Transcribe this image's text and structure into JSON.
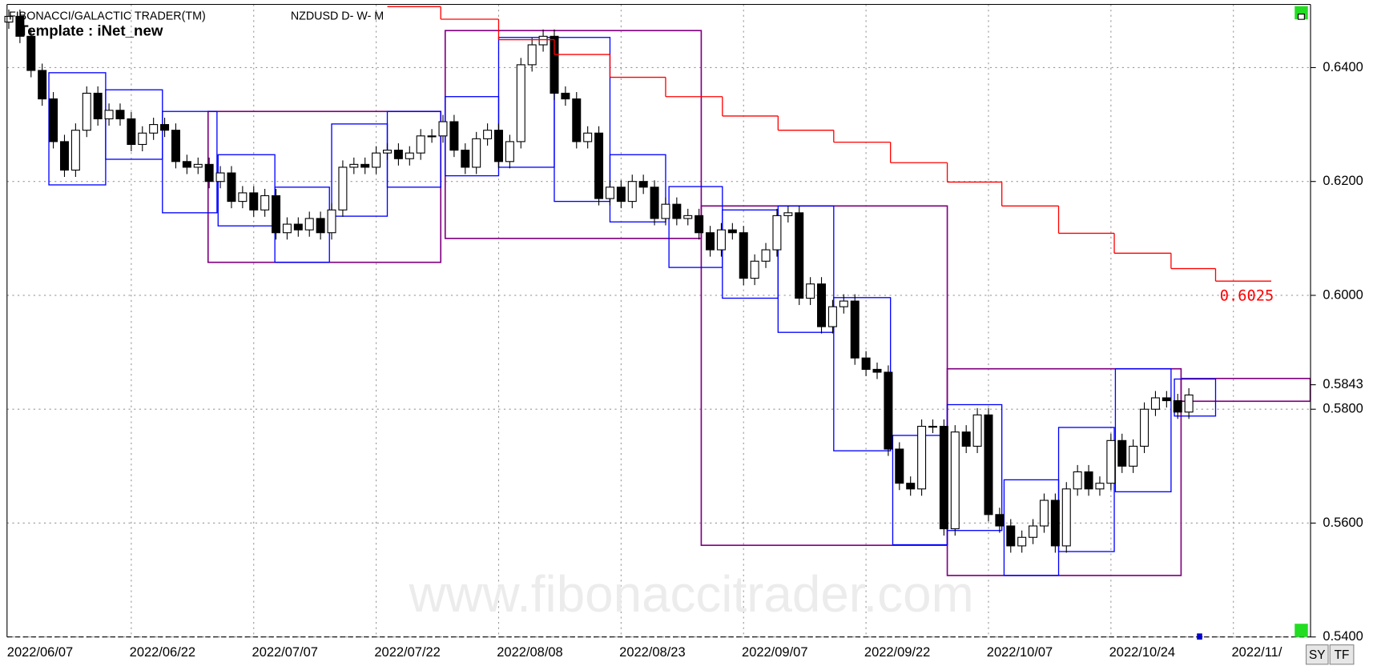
{
  "chart_data": {
    "type": "candlestick",
    "title": "FIBONACCI/GALACTIC TRADER(TM)",
    "symbol": "NZDUSD D- W- M",
    "template": "Template : iNet_new",
    "watermark": "www.fibonaccitrader.com",
    "buttons": [
      "SY",
      "TF"
    ],
    "up_color": "#ffffff",
    "down_color": "#000000",
    "weekly_color": "#0000ff",
    "monthly_color": "#800080",
    "stop_color": "#ff0000",
    "grid": true,
    "ylim": [
      0.54,
      0.6511
    ],
    "yticks": [
      {
        "value": 0.54,
        "label": "0.5400"
      },
      {
        "value": 0.56,
        "label": "0.5600"
      },
      {
        "value": 0.58,
        "label": "0.5800"
      },
      {
        "value": 0.6,
        "label": "0.6000"
      },
      {
        "value": 0.62,
        "label": "0.6200"
      },
      {
        "value": 0.64,
        "label": "0.6400"
      }
    ],
    "last_price": 0.5843,
    "xlim": [
      -0.158,
      116.93
    ],
    "xticks": [
      {
        "value": 0,
        "label": "2022/06/07"
      },
      {
        "value": 11,
        "label": "2022/06/22"
      },
      {
        "value": 22,
        "label": "2022/07/07"
      },
      {
        "value": 33,
        "label": "2022/07/22"
      },
      {
        "value": 44,
        "label": "2022/08/08"
      },
      {
        "value": 55,
        "label": "2022/08/23"
      },
      {
        "value": 66,
        "label": "2022/09/07"
      },
      {
        "value": 77,
        "label": "2022/09/22"
      },
      {
        "value": 88,
        "label": "2022/10/07"
      },
      {
        "value": 99,
        "label": "2022/10/24"
      },
      {
        "value": 110,
        "label": "2022/11/"
      }
    ],
    "candles": [
      [
        0.648,
        0.6502,
        0.6468,
        0.649
      ],
      [
        0.649,
        0.6502,
        0.6443,
        0.6455
      ],
      [
        0.6455,
        0.6467,
        0.6383,
        0.6395
      ],
      [
        0.6395,
        0.6407,
        0.6333,
        0.6345
      ],
      [
        0.6345,
        0.6357,
        0.6258,
        0.627
      ],
      [
        0.627,
        0.6282,
        0.6208,
        0.622
      ],
      [
        0.622,
        0.6302,
        0.6208,
        0.629
      ],
      [
        0.629,
        0.6367,
        0.6278,
        0.6355
      ],
      [
        0.6355,
        0.6367,
        0.6298,
        0.631
      ],
      [
        0.631,
        0.6337,
        0.6298,
        0.6325
      ],
      [
        0.6325,
        0.6337,
        0.6298,
        0.631
      ],
      [
        0.631,
        0.6322,
        0.6253,
        0.6265
      ],
      [
        0.6265,
        0.6297,
        0.6253,
        0.6285
      ],
      [
        0.6285,
        0.6312,
        0.6273,
        0.63
      ],
      [
        0.63,
        0.6312,
        0.6278,
        0.629
      ],
      [
        0.629,
        0.6302,
        0.6223,
        0.6235
      ],
      [
        0.6235,
        0.6247,
        0.6213,
        0.6225
      ],
      [
        0.6225,
        0.6242,
        0.6213,
        0.623
      ],
      [
        0.623,
        0.6242,
        0.6188,
        0.62
      ],
      [
        0.62,
        0.6227,
        0.6188,
        0.6215
      ],
      [
        0.6215,
        0.6227,
        0.6153,
        0.6165
      ],
      [
        0.6165,
        0.6192,
        0.6153,
        0.618
      ],
      [
        0.618,
        0.6192,
        0.6138,
        0.615
      ],
      [
        0.615,
        0.6187,
        0.6138,
        0.6175
      ],
      [
        0.6175,
        0.6187,
        0.6098,
        0.611
      ],
      [
        0.611,
        0.6137,
        0.6098,
        0.6125
      ],
      [
        0.6125,
        0.6137,
        0.6103,
        0.6115
      ],
      [
        0.6115,
        0.6147,
        0.6103,
        0.6135
      ],
      [
        0.6135,
        0.6147,
        0.6098,
        0.611
      ],
      [
        0.611,
        0.6162,
        0.6098,
        0.615
      ],
      [
        0.615,
        0.6237,
        0.6138,
        0.6225
      ],
      [
        0.6225,
        0.6242,
        0.6213,
        0.623
      ],
      [
        0.623,
        0.6242,
        0.6213,
        0.6225
      ],
      [
        0.6225,
        0.6262,
        0.6213,
        0.625
      ],
      [
        0.625,
        0.6267,
        0.6238,
        0.6255
      ],
      [
        0.6255,
        0.6267,
        0.6228,
        0.624
      ],
      [
        0.624,
        0.6262,
        0.6228,
        0.625
      ],
      [
        0.625,
        0.6292,
        0.6238,
        0.628
      ],
      [
        0.628,
        0.6292,
        0.6268,
        0.628
      ],
      [
        0.628,
        0.6317,
        0.6268,
        0.6305
      ],
      [
        0.6305,
        0.6317,
        0.6243,
        0.6255
      ],
      [
        0.6255,
        0.6267,
        0.6213,
        0.6225
      ],
      [
        0.6225,
        0.6287,
        0.6213,
        0.6275
      ],
      [
        0.6275,
        0.6302,
        0.6263,
        0.629
      ],
      [
        0.629,
        0.6302,
        0.6223,
        0.6235
      ],
      [
        0.6235,
        0.6282,
        0.6223,
        0.627
      ],
      [
        0.627,
        0.6417,
        0.6258,
        0.6405
      ],
      [
        0.6405,
        0.6452,
        0.6393,
        0.644
      ],
      [
        0.644,
        0.6467,
        0.6428,
        0.6455
      ],
      [
        0.6455,
        0.6467,
        0.6343,
        0.6355
      ],
      [
        0.6355,
        0.6367,
        0.6333,
        0.6345
      ],
      [
        0.6345,
        0.6357,
        0.6258,
        0.627
      ],
      [
        0.627,
        0.6297,
        0.6258,
        0.6285
      ],
      [
        0.6285,
        0.6297,
        0.6158,
        0.617
      ],
      [
        0.617,
        0.6202,
        0.6158,
        0.619
      ],
      [
        0.619,
        0.6202,
        0.6153,
        0.6165
      ],
      [
        0.6165,
        0.6212,
        0.6153,
        0.62
      ],
      [
        0.62,
        0.6212,
        0.6178,
        0.619
      ],
      [
        0.619,
        0.6202,
        0.6123,
        0.6135
      ],
      [
        0.6135,
        0.6172,
        0.6123,
        0.616
      ],
      [
        0.616,
        0.6172,
        0.6123,
        0.6135
      ],
      [
        0.6135,
        0.6152,
        0.6123,
        0.614
      ],
      [
        0.614,
        0.6152,
        0.6098,
        0.611
      ],
      [
        0.611,
        0.6122,
        0.6068,
        0.608
      ],
      [
        0.608,
        0.6127,
        0.6068,
        0.6115
      ],
      [
        0.6115,
        0.6127,
        0.6098,
        0.611
      ],
      [
        0.611,
        0.6122,
        0.6018,
        0.603
      ],
      [
        0.603,
        0.6072,
        0.6018,
        0.606
      ],
      [
        0.606,
        0.6092,
        0.6048,
        0.608
      ],
      [
        0.608,
        0.6152,
        0.6068,
        0.614
      ],
      [
        0.614,
        0.6157,
        0.6128,
        0.6145
      ],
      [
        0.6145,
        0.6157,
        0.5983,
        0.5995
      ],
      [
        0.5995,
        0.6032,
        0.5983,
        0.602
      ],
      [
        0.602,
        0.6032,
        0.5933,
        0.5945
      ],
      [
        0.5945,
        0.5992,
        0.5933,
        0.598
      ],
      [
        0.598,
        0.6002,
        0.5968,
        0.599
      ],
      [
        0.599,
        0.6002,
        0.5878,
        0.589
      ],
      [
        0.589,
        0.5902,
        0.5858,
        0.587
      ],
      [
        0.587,
        0.5882,
        0.5853,
        0.5865
      ],
      [
        0.5865,
        0.5877,
        0.5718,
        0.573
      ],
      [
        0.573,
        0.5742,
        0.5658,
        0.567
      ],
      [
        0.567,
        0.5682,
        0.5648,
        0.566
      ],
      [
        0.566,
        0.5782,
        0.5648,
        0.577
      ],
      [
        0.577,
        0.5782,
        0.5758,
        0.577
      ],
      [
        0.577,
        0.5782,
        0.5578,
        0.559
      ],
      [
        0.559,
        0.5772,
        0.5578,
        0.576
      ],
      [
        0.576,
        0.5772,
        0.5723,
        0.5735
      ],
      [
        0.5735,
        0.5802,
        0.5723,
        0.579
      ],
      [
        0.579,
        0.5802,
        0.5603,
        0.5615
      ],
      [
        0.5615,
        0.5627,
        0.5583,
        0.5595
      ],
      [
        0.5595,
        0.5607,
        0.5548,
        0.556
      ],
      [
        0.556,
        0.5587,
        0.5548,
        0.5575
      ],
      [
        0.5575,
        0.5607,
        0.5563,
        0.5595
      ],
      [
        0.5595,
        0.5652,
        0.5583,
        0.564
      ],
      [
        0.564,
        0.5652,
        0.5548,
        0.556
      ],
      [
        0.556,
        0.5672,
        0.5548,
        0.566
      ],
      [
        0.566,
        0.5702,
        0.5648,
        0.569
      ],
      [
        0.569,
        0.5702,
        0.5648,
        0.566
      ],
      [
        0.566,
        0.5682,
        0.5648,
        0.567
      ],
      [
        0.567,
        0.5757,
        0.5658,
        0.5745
      ],
      [
        0.5745,
        0.5757,
        0.5688,
        0.57
      ],
      [
        0.57,
        0.5747,
        0.5688,
        0.5735
      ],
      [
        0.5735,
        0.5812,
        0.5723,
        0.58
      ],
      [
        0.58,
        0.5832,
        0.5788,
        0.582
      ],
      [
        0.582,
        0.5832,
        0.5803,
        0.5815
      ],
      [
        0.5815,
        0.5827,
        0.5783,
        0.5795
      ],
      [
        0.5795,
        0.5837,
        0.5783,
        0.5825
      ]
    ],
    "monthly_boxes": [
      [
        17.9,
        38.8,
        0.6323,
        0.6058
      ],
      [
        39.2,
        62.2,
        0.6465,
        0.61
      ],
      [
        62.2,
        84.3,
        0.6157,
        0.5561
      ],
      [
        84.3,
        105.3,
        0.5871,
        0.5508
      ],
      [
        105.3,
        116.9,
        0.5854,
        0.5814
      ]
    ],
    "weekly_boxes": [
      [
        3.6,
        8.7,
        0.6391,
        0.6194
      ],
      [
        8.7,
        13.8,
        0.6361,
        0.6239
      ],
      [
        13.8,
        18.7,
        0.6323,
        0.6145
      ],
      [
        18.8,
        23.9,
        0.6247,
        0.6122
      ],
      [
        23.9,
        28.8,
        0.619,
        0.6058
      ],
      [
        29.0,
        34.0,
        0.6301,
        0.6139
      ],
      [
        34.0,
        38.8,
        0.6323,
        0.619
      ],
      [
        39.2,
        44.0,
        0.6349,
        0.621
      ],
      [
        44.0,
        49.0,
        0.6453,
        0.6225
      ],
      [
        49.0,
        54.0,
        0.6453,
        0.6165
      ],
      [
        54.0,
        59.0,
        0.6247,
        0.6129
      ],
      [
        59.3,
        64.1,
        0.6191,
        0.6049
      ],
      [
        64.1,
        69.1,
        0.615,
        0.5995
      ],
      [
        69.1,
        74.1,
        0.6157,
        0.5935
      ],
      [
        74.1,
        79.2,
        0.5996,
        0.5727
      ],
      [
        79.4,
        84.3,
        0.5754,
        0.5562
      ],
      [
        84.3,
        89.2,
        0.5808,
        0.5587
      ],
      [
        89.4,
        94.3,
        0.5676,
        0.5508
      ],
      [
        94.3,
        99.3,
        0.5768,
        0.555
      ],
      [
        99.4,
        104.4,
        0.5871,
        0.5655
      ],
      [
        104.7,
        108.4,
        0.5853,
        0.5788
      ]
    ],
    "stop_line": [
      [
        34,
        38.8,
        0.6507
      ],
      [
        38.8,
        44,
        0.6485
      ],
      [
        44,
        49,
        0.6449
      ],
      [
        49,
        54,
        0.6423
      ],
      [
        54,
        59,
        0.6383
      ],
      [
        59,
        64.1,
        0.6349
      ],
      [
        64.1,
        69.1,
        0.6315
      ],
      [
        69.1,
        74.1,
        0.629
      ],
      [
        74.1,
        79.2,
        0.6269
      ],
      [
        79.2,
        84.3,
        0.6233
      ],
      [
        84.3,
        89.2,
        0.6199
      ],
      [
        89.2,
        94.3,
        0.6157
      ],
      [
        94.3,
        99.3,
        0.6109
      ],
      [
        99.3,
        104.4,
        0.6074
      ],
      [
        104.4,
        108.4,
        0.6047
      ],
      [
        108.4,
        113.4,
        0.6025
      ]
    ]
  }
}
